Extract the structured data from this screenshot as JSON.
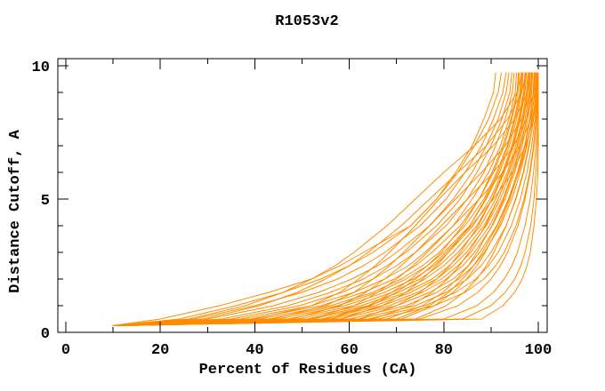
{
  "page": {
    "background": "#ffffff"
  },
  "chart_data": {
    "type": "line",
    "title": "R1053v2",
    "xlabel": "Percent of Residues (CA)",
    "ylabel": "Distance Cutoff, A",
    "xlim": [
      0,
      100
    ],
    "ylim": [
      0,
      10
    ],
    "grid": false,
    "legend": "none",
    "line_color": "#ff8c00",
    "axis_color": "#000000",
    "x_major_ticks": [
      0,
      20,
      40,
      60,
      80,
      100
    ],
    "x_major_tick_labels": [
      "0",
      "20",
      "40",
      "60",
      "80",
      "100"
    ],
    "x_minor_ticks": [
      10,
      30,
      50,
      70,
      90
    ],
    "y_major_ticks": [
      0,
      5,
      10
    ],
    "y_major_tick_labels": [
      "0",
      "5",
      "10"
    ],
    "y_minor_ticks": [
      1,
      2,
      3,
      4,
      6,
      7,
      8,
      9
    ],
    "cutoffs": [
      0.25,
      0.5,
      1,
      1.5,
      2,
      2.5,
      3,
      4,
      5,
      6,
      7,
      8,
      9,
      9.75
    ],
    "curves_pct_at_cutoff": [
      [
        9.8,
        20,
        32.5,
        43,
        52,
        58,
        63,
        73,
        78.5,
        82.5,
        86,
        88.5,
        90.5,
        91
      ],
      [
        10,
        24,
        36,
        46,
        54,
        60,
        65,
        73,
        78.5,
        83,
        86.5,
        89.5,
        91.5,
        92.2
      ],
      [
        10.1,
        27,
        40,
        50,
        57.5,
        63,
        67.5,
        75,
        80.5,
        84.5,
        88,
        90.5,
        92.5,
        93.2
      ],
      [
        10.2,
        30,
        44,
        53.5,
        60.5,
        66,
        70,
        77,
        82,
        86,
        89,
        91.5,
        93.2,
        93.8
      ],
      [
        10.2,
        33,
        47,
        56,
        63,
        68,
        72,
        78.5,
        83.5,
        87,
        90,
        92.3,
        94,
        94.4
      ],
      [
        10.3,
        35,
        49.5,
        58.5,
        65,
        70,
        74,
        80.5,
        85,
        88.5,
        91,
        93,
        94.5,
        94.9
      ],
      [
        10.3,
        37,
        52,
        61,
        67.5,
        72.5,
        76,
        82,
        86,
        89.5,
        92,
        93.8,
        95.1,
        95.4
      ],
      [
        10.4,
        39,
        54,
        63,
        69.5,
        74,
        77.5,
        83.5,
        87.5,
        90.5,
        92.8,
        94.4,
        95.7,
        96
      ],
      [
        10.4,
        41,
        56,
        65,
        71,
        75.5,
        79,
        84.5,
        88.5,
        91.2,
        93.4,
        94.9,
        96.1,
        96.4
      ],
      [
        10.5,
        55,
        64,
        69,
        73,
        76.5,
        79.5,
        84,
        87.5,
        90.2,
        92.5,
        94.2,
        95.5,
        95.8
      ],
      [
        10,
        26,
        38,
        46,
        52,
        57,
        61,
        68,
        74,
        80,
        86.5,
        92,
        95.5,
        96.6
      ],
      [
        10.5,
        43,
        57.5,
        66,
        72,
        76.5,
        80,
        85.5,
        89,
        91.8,
        93.9,
        95.4,
        96.5,
        96.8
      ],
      [
        10.6,
        58,
        67,
        72,
        75.5,
        78.5,
        81,
        85.5,
        88.8,
        91.5,
        93.6,
        95.1,
        96.3,
        96.6
      ],
      [
        10.6,
        45,
        59,
        67.5,
        73.5,
        78,
        81,
        86.2,
        89.8,
        92.4,
        94.4,
        95.8,
        96.9,
        97.2
      ],
      [
        10.1,
        29,
        41,
        49,
        55,
        60,
        64,
        71,
        77,
        83,
        89,
        93.5,
        96.5,
        97.4
      ],
      [
        10.7,
        47,
        61,
        69,
        75,
        79,
        82,
        87,
        90.3,
        92.8,
        94.8,
        96.2,
        97.2,
        97.5
      ],
      [
        10.7,
        62,
        70,
        75,
        78.5,
        81.3,
        83.5,
        87.3,
        90.2,
        92.6,
        94.6,
        96,
        97,
        97.3
      ],
      [
        10.8,
        49,
        62.5,
        70.5,
        76,
        80,
        83,
        87.8,
        91,
        93.4,
        95.2,
        96.6,
        97.5,
        97.8
      ],
      [
        10.2,
        40,
        52,
        58,
        62,
        65.5,
        68.5,
        74,
        79,
        84.5,
        90.5,
        95,
        97.8,
        98.4
      ],
      [
        10.8,
        51,
        64,
        72,
        77.5,
        81.2,
        84,
        88.5,
        91.5,
        93.8,
        95.6,
        96.9,
        97.8,
        98.1
      ],
      [
        10.9,
        65,
        73,
        77.5,
        80.8,
        83.3,
        85.3,
        88.8,
        91.5,
        93.7,
        95.5,
        96.8,
        97.7,
        98
      ],
      [
        10.9,
        52,
        65.5,
        73,
        78.5,
        82,
        84.8,
        89,
        92,
        94.2,
        95.9,
        97.2,
        98.1,
        98.3
      ],
      [
        10.3,
        44,
        55,
        61,
        65,
        68.5,
        71.5,
        77,
        82.5,
        88,
        93,
        96.5,
        98.3,
        98.7
      ],
      [
        11,
        54,
        67,
        74.5,
        79.5,
        83,
        85.7,
        89.7,
        92.5,
        94.6,
        96.2,
        97.5,
        98.3,
        98.6
      ],
      [
        11,
        68,
        75.5,
        79.8,
        82.8,
        85.2,
        87,
        90.2,
        92.7,
        94.7,
        96.3,
        97.5,
        98.4,
        98.6
      ],
      [
        11.1,
        56,
        68.5,
        75.5,
        80.5,
        84,
        86.5,
        90.3,
        93,
        95,
        96.6,
        97.8,
        98.6,
        98.8
      ],
      [
        10.4,
        48,
        58,
        63.5,
        67.5,
        71,
        74,
        79.5,
        85,
        90.5,
        94.8,
        97.5,
        99,
        99.3
      ],
      [
        11.1,
        58,
        70,
        77,
        82,
        85.2,
        87.6,
        91.2,
        93.7,
        95.6,
        97.1,
        98.2,
        98.9,
        99.1
      ],
      [
        11.2,
        71,
        78,
        82,
        84.8,
        87,
        88.8,
        91.7,
        94,
        95.8,
        97.2,
        98.3,
        99,
        99.2
      ],
      [
        11.2,
        60,
        72,
        78.5,
        83.2,
        86.3,
        88.6,
        92,
        94.4,
        96.2,
        97.6,
        98.6,
        99.2,
        99.4
      ],
      [
        10.5,
        52,
        61,
        66,
        70,
        73.5,
        76.5,
        82,
        87.5,
        92.5,
        96.2,
        98.4,
        99.4,
        99.6
      ],
      [
        11.3,
        62,
        74,
        80.5,
        85,
        87.9,
        90,
        93.2,
        95.3,
        96.9,
        98.1,
        99,
        99.5,
        99.7
      ],
      [
        11.3,
        74,
        80.5,
        84.3,
        87,
        89,
        90.6,
        93.2,
        95.2,
        96.8,
        98,
        99,
        99.6,
        99.7
      ],
      [
        11.4,
        64,
        76,
        82.5,
        86.8,
        89.5,
        91.5,
        94.3,
        96.2,
        97.6,
        98.6,
        99.3,
        99.7,
        99.8
      ],
      [
        10.6,
        56,
        64.5,
        70,
        74,
        77.5,
        80.5,
        85.8,
        90.5,
        94.5,
        97.3,
        99,
        99.7,
        99.8
      ],
      [
        11.4,
        66,
        78,
        84.5,
        88.5,
        91,
        92.8,
        95.3,
        97,
        98.2,
        99,
        99.5,
        99.8,
        99.9
      ],
      [
        11.5,
        70,
        77,
        81,
        84,
        86.3,
        88.2,
        91.3,
        93.8,
        95.9,
        97.5,
        98.8,
        99.6,
        99.8
      ],
      [
        11.5,
        75,
        83,
        87.2,
        90,
        92,
        93.5,
        95.7,
        97.2,
        98.3,
        99.1,
        99.6,
        99.9,
        100
      ],
      [
        11.6,
        80,
        87,
        90.5,
        92.8,
        94.4,
        95.6,
        97.2,
        98.3,
        99,
        99.5,
        99.8,
        100,
        100
      ],
      [
        11.7,
        84,
        90,
        93,
        95,
        96.3,
        97.2,
        98.4,
        99.1,
        99.5,
        99.8,
        100,
        100,
        100
      ],
      [
        11.8,
        88,
        92.5,
        95,
        96.6,
        97.6,
        98.3,
        99.1,
        99.6,
        99.9,
        100,
        100,
        100,
        100
      ]
    ]
  }
}
